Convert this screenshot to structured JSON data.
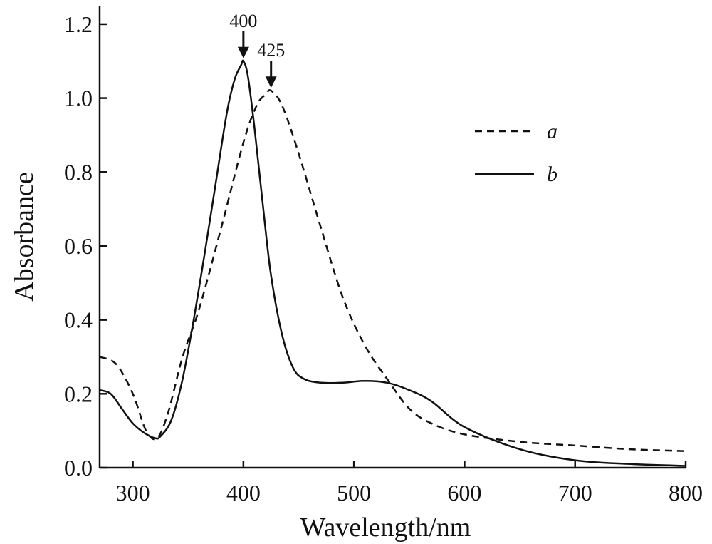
{
  "chart_data": {
    "type": "line",
    "title": "",
    "xlabel": "Wavelength/nm",
    "ylabel": "Absorbance",
    "xlim": [
      270,
      800
    ],
    "ylim": [
      0,
      1.25
    ],
    "xticks": [
      300,
      400,
      500,
      600,
      700,
      800
    ],
    "xtick_labels": [
      "300",
      "400",
      "500",
      "600",
      "700",
      "800"
    ],
    "yticks": [
      0,
      0.2,
      0.4,
      0.6,
      0.8,
      1.0,
      1.2
    ],
    "ytick_labels": [
      "0.0",
      "0.2",
      "0.4",
      "0.6",
      "0.8",
      "1.0",
      "1.2"
    ],
    "grid": false,
    "legend_position": "top-right",
    "series": [
      {
        "name": "a",
        "style": "dashed",
        "color": "#111111",
        "x": [
          270,
          285,
          300,
          312,
          322,
          332,
          345,
          360,
          380,
          400,
          412,
          420,
          425,
          435,
          450,
          470,
          490,
          510,
          530,
          550,
          570,
          600,
          650,
          700,
          750,
          800
        ],
        "y": [
          0.3,
          0.28,
          0.2,
          0.1,
          0.08,
          0.15,
          0.3,
          0.43,
          0.65,
          0.88,
          0.98,
          1.01,
          1.02,
          0.98,
          0.85,
          0.65,
          0.46,
          0.33,
          0.24,
          0.16,
          0.12,
          0.09,
          0.07,
          0.06,
          0.05,
          0.045
        ]
      },
      {
        "name": "b",
        "style": "solid",
        "color": "#111111",
        "x": [
          270,
          280,
          290,
          300,
          310,
          320,
          325,
          335,
          345,
          355,
          365,
          375,
          385,
          392,
          398,
          400,
          404,
          410,
          418,
          425,
          435,
          445,
          455,
          470,
          490,
          510,
          530,
          550,
          570,
          600,
          650,
          700,
          750,
          800
        ],
        "y": [
          0.21,
          0.2,
          0.16,
          0.12,
          0.095,
          0.08,
          0.085,
          0.13,
          0.24,
          0.4,
          0.58,
          0.77,
          0.96,
          1.05,
          1.09,
          1.1,
          1.06,
          0.92,
          0.7,
          0.52,
          0.36,
          0.27,
          0.24,
          0.23,
          0.23,
          0.235,
          0.23,
          0.21,
          0.18,
          0.11,
          0.05,
          0.02,
          0.01,
          0.005
        ]
      }
    ],
    "annotations": [
      {
        "text": "400",
        "x": 400,
        "y": 1.1
      },
      {
        "text": "425",
        "x": 425,
        "y": 1.02
      }
    ]
  }
}
